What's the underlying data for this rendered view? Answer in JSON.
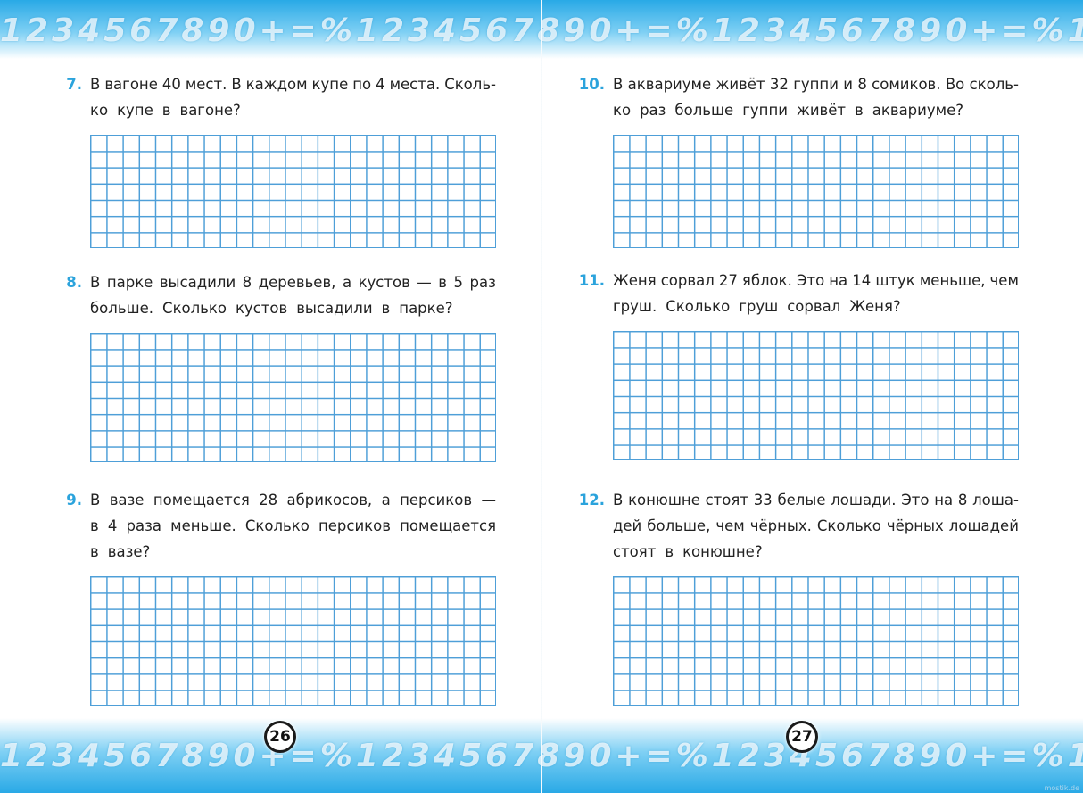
{
  "banner": "1234567890+=%",
  "watermark": "mostik.de",
  "pages": [
    {
      "number": "26",
      "problems": [
        {
          "number": "7.",
          "lines": [
            "В вагоне 40 мест. В каждом купе по 4 места. Сколь-",
            "ко купе в вагоне?"
          ]
        },
        {
          "number": "8.",
          "lines": [
            "В парке высадили 8 деревьев, а кустов — в 5 раз",
            "больше. Сколько кустов высадили в парке?"
          ]
        },
        {
          "number": "9.",
          "lines": [
            "В вазе помещается 28 абрикосов, а персиков —",
            "в 4 раза меньше. Сколько персиков помещается",
            "в вазе?"
          ]
        }
      ]
    },
    {
      "number": "27",
      "problems": [
        {
          "number": "10.",
          "lines": [
            "В аквариуме живёт 32 гуппи и 8 сомиков. Во сколь-",
            "ко раз больше гуппи живёт в аквариуме?"
          ]
        },
        {
          "number": "11.",
          "lines": [
            "Женя сорвал 27 яблок. Это на 14 штук меньше, чем",
            "груш. Сколько груш сорвал Женя?"
          ]
        },
        {
          "number": "12.",
          "lines": [
            "В конюшне стоят 33 белые лошади. Это на 8 лоша-",
            "дей больше, чем чёрных. Сколько чёрных лошадей",
            "стоят в конюшне?"
          ]
        }
      ]
    }
  ]
}
